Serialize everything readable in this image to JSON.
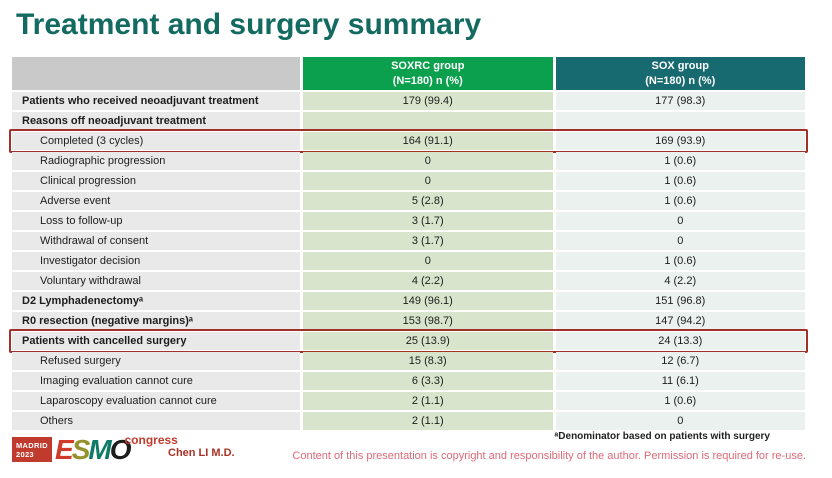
{
  "title": "Treatment and surgery summary",
  "table": {
    "header": {
      "soxrc": {
        "line1": "SOXRC group",
        "line2": "(N=180) n (%)"
      },
      "sox": {
        "line1": "SOX group",
        "line2": "(N=180) n (%)"
      }
    },
    "rows": [
      {
        "label": "Patients who received neoadjuvant treatment",
        "soxrc": "179 (99.4)",
        "sox": "177 (98.3)",
        "bold": true,
        "indent": false,
        "highlight": false
      },
      {
        "label": "Reasons off neoadjuvant treatment",
        "soxrc": "",
        "sox": "",
        "bold": true,
        "indent": false,
        "highlight": false
      },
      {
        "label": "Completed (3 cycles)",
        "soxrc": "164 (91.1)",
        "sox": "169 (93.9)",
        "bold": false,
        "indent": true,
        "highlight": true
      },
      {
        "label": "Radiographic progression",
        "soxrc": "0",
        "sox": "1 (0.6)",
        "bold": false,
        "indent": true,
        "highlight": false
      },
      {
        "label": "Clinical progression",
        "soxrc": "0",
        "sox": "1 (0.6)",
        "bold": false,
        "indent": true,
        "highlight": false
      },
      {
        "label": "Adverse event",
        "soxrc": "5 (2.8)",
        "sox": "1 (0.6)",
        "bold": false,
        "indent": true,
        "highlight": false
      },
      {
        "label": "Loss to follow-up",
        "soxrc": "3 (1.7)",
        "sox": "0",
        "bold": false,
        "indent": true,
        "highlight": false
      },
      {
        "label": "Withdrawal of consent",
        "soxrc": "3 (1.7)",
        "sox": "0",
        "bold": false,
        "indent": true,
        "highlight": false
      },
      {
        "label": "Investigator decision",
        "soxrc": "0",
        "sox": "1 (0.6)",
        "bold": false,
        "indent": true,
        "highlight": false
      },
      {
        "label": "Voluntary withdrawal",
        "soxrc": "4 (2.2)",
        "sox": "4 (2.2)",
        "bold": false,
        "indent": true,
        "highlight": false
      },
      {
        "label": "D2 Lymphadenectomyᵃ",
        "soxrc": "149 (96.1)",
        "sox": "151 (96.8)",
        "bold": true,
        "indent": false,
        "highlight": false
      },
      {
        "label": "R0 resection (negative margins)ᵃ",
        "soxrc": "153 (98.7)",
        "sox": "147 (94.2)",
        "bold": true,
        "indent": false,
        "highlight": false
      },
      {
        "label": "Patients with cancelled surgery",
        "soxrc": "25 (13.9)",
        "sox": "24 (13.3)",
        "bold": true,
        "indent": false,
        "highlight": true
      },
      {
        "label": "Refused surgery",
        "soxrc": "15 (8.3)",
        "sox": "12 (6.7)",
        "bold": false,
        "indent": true,
        "highlight": false
      },
      {
        "label": "Imaging evaluation cannot cure",
        "soxrc": "6 (3.3)",
        "sox": "11 (6.1)",
        "bold": false,
        "indent": true,
        "highlight": false
      },
      {
        "label": "Laparoscopy evaluation cannot cure",
        "soxrc": "2 (1.1)",
        "sox": "1 (0.6)",
        "bold": false,
        "indent": true,
        "highlight": false
      },
      {
        "label": "Others",
        "soxrc": "2 (1.1)",
        "sox": "0",
        "bold": false,
        "indent": true,
        "highlight": false
      }
    ]
  },
  "footer": {
    "footnote": "ᵃDenominator based on patients with surgery",
    "author": "Chen LI M.D.",
    "copyright": "Content of this presentation is copyright and responsibility of the author. Permission is required for re-use.",
    "logo": {
      "location": "MADRID",
      "year": "2023",
      "letters": [
        "E",
        "S",
        "M",
        "O"
      ],
      "suffix": "congress"
    }
  },
  "colors": {
    "title": "#136a60",
    "header_soxrc_bg": "#0ba04d",
    "header_sox_bg": "#176a70",
    "header_blank_bg": "#c9c9c9",
    "label_cell_bg": "#e9e9e9",
    "soxrc_cell_bg": "#d8e5cc",
    "sox_cell_bg": "#eaf1ee",
    "highlight_border": "#a0302a",
    "copyright_text": "#dd6a79",
    "author_text": "#a93226",
    "logo_red": "#c13a2e"
  }
}
